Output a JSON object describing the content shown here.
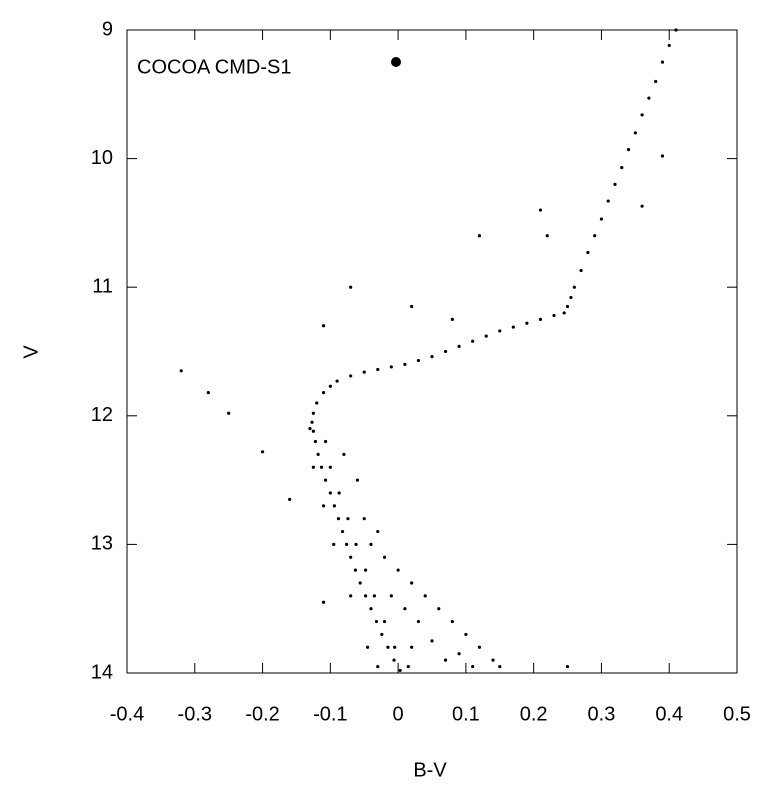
{
  "chart_data": {
    "type": "scatter",
    "xlabel": "B-V",
    "ylabel": "V",
    "xlim": [
      -0.4,
      0.5
    ],
    "ylim": [
      14,
      9
    ],
    "xticks": [
      -0.4,
      -0.3,
      -0.2,
      -0.1,
      0,
      0.1,
      0.2,
      0.3,
      0.4,
      0.5
    ],
    "yticks": [
      9,
      10,
      11,
      12,
      13,
      14
    ],
    "legend": "upper left",
    "series": [
      {
        "name": "COCOA CMD-S1",
        "color": "#000000",
        "x": [
          0.41,
          0.4,
          0.39,
          0.38,
          0.37,
          0.36,
          0.35,
          0.34,
          0.33,
          0.32,
          0.31,
          0.3,
          0.29,
          0.28,
          0.27,
          0.26,
          0.255,
          0.25,
          0.245,
          0.23,
          0.21,
          0.19,
          0.17,
          0.15,
          0.13,
          0.11,
          0.09,
          0.07,
          0.05,
          0.03,
          0.01,
          -0.01,
          -0.03,
          -0.05,
          -0.07,
          -0.09,
          -0.1,
          -0.11,
          -0.12,
          -0.125,
          -0.127,
          -0.125,
          -0.122,
          -0.118,
          -0.113,
          -0.107,
          -0.1,
          -0.094,
          -0.088,
          -0.082,
          -0.076,
          -0.07,
          -0.063,
          -0.056,
          -0.048,
          -0.04,
          -0.032,
          -0.024,
          -0.015,
          -0.006,
          0.003,
          -0.107,
          -0.1,
          -0.087,
          -0.074,
          -0.062,
          -0.048,
          -0.035,
          -0.02,
          -0.005,
          0.015,
          -0.13,
          -0.125,
          -0.11,
          -0.095,
          -0.07,
          -0.045,
          -0.03,
          -0.08,
          -0.06,
          -0.05,
          -0.03,
          -0.02,
          0.0,
          0.02,
          0.04,
          0.06,
          0.08,
          0.1,
          0.12,
          0.14,
          0.15,
          0.03,
          0.05,
          0.09,
          0.01,
          -0.01,
          0.07,
          0.11,
          -0.04,
          0.02,
          -0.32,
          -0.28,
          -0.25,
          -0.2,
          -0.16,
          -0.11,
          -0.07,
          0.02,
          0.12,
          0.21,
          0.22,
          0.36,
          0.39,
          -0.11,
          0.25,
          0.08
        ],
        "y": [
          9.0,
          9.12,
          9.25,
          9.4,
          9.53,
          9.66,
          9.8,
          9.93,
          10.07,
          10.2,
          10.33,
          10.47,
          10.6,
          10.73,
          10.87,
          11.0,
          11.08,
          11.15,
          11.2,
          11.22,
          11.25,
          11.28,
          11.31,
          11.34,
          11.38,
          11.42,
          11.46,
          11.5,
          11.54,
          11.57,
          11.6,
          11.62,
          11.64,
          11.66,
          11.69,
          11.73,
          11.77,
          11.82,
          11.9,
          11.98,
          12.05,
          12.12,
          12.2,
          12.3,
          12.4,
          12.5,
          12.6,
          12.7,
          12.8,
          12.9,
          13.0,
          13.1,
          13.2,
          13.3,
          13.4,
          13.5,
          13.6,
          13.7,
          13.8,
          13.9,
          13.98,
          12.2,
          12.4,
          12.6,
          12.8,
          13.0,
          13.2,
          13.4,
          13.6,
          13.8,
          13.95,
          12.1,
          12.4,
          12.7,
          13.0,
          13.4,
          13.8,
          13.95,
          12.3,
          12.5,
          12.8,
          12.9,
          13.1,
          13.2,
          13.3,
          13.4,
          13.5,
          13.6,
          13.7,
          13.8,
          13.9,
          13.95,
          13.6,
          13.75,
          13.85,
          13.5,
          13.4,
          13.9,
          13.95,
          13.0,
          13.8,
          11.65,
          11.82,
          11.98,
          12.28,
          12.65,
          13.45,
          11.0,
          11.15,
          10.6,
          10.4,
          10.6,
          10.37,
          9.98,
          11.3,
          13.95,
          11.25
        ]
      }
    ]
  }
}
